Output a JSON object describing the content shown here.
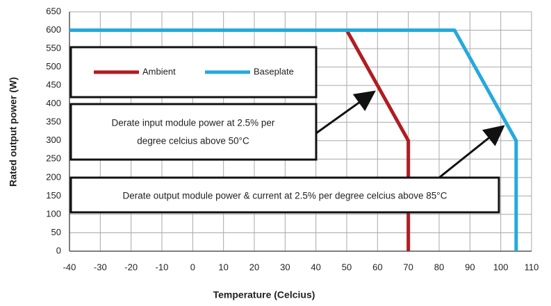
{
  "chart_data": {
    "type": "line",
    "xlabel": "Temperature (Celcius)",
    "ylabel": "Rated output power (W)",
    "xlim": [
      -40,
      110
    ],
    "xticks": [
      -40,
      -30,
      -20,
      -10,
      0,
      10,
      20,
      30,
      40,
      50,
      60,
      70,
      80,
      90,
      100,
      110
    ],
    "ylim": [
      0,
      650
    ],
    "yticks": [
      0,
      50,
      100,
      150,
      200,
      250,
      300,
      350,
      400,
      450,
      500,
      550,
      600,
      650
    ],
    "grid": true,
    "series": [
      {
        "name": "Ambient",
        "color": "#b01c22",
        "x": [
          -40,
          50,
          70,
          70
        ],
        "values": [
          600,
          600,
          300,
          0
        ]
      },
      {
        "name": "Baseplate",
        "color": "#25a9dc",
        "x": [
          -40,
          85,
          105,
          105
        ],
        "values": [
          600,
          600,
          300,
          0
        ]
      }
    ],
    "annotations": [
      {
        "lines": [
          "Derate input module power at 2.5% per",
          "degree celcius above 50°C"
        ]
      },
      {
        "lines": [
          "Derate output module power & current at 2.5% per degree celcius above 85°C"
        ]
      }
    ]
  }
}
